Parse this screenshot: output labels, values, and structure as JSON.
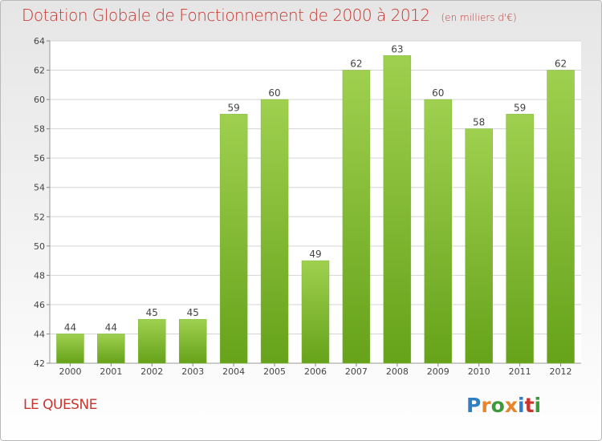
{
  "title": "Dotation Globale de Fonctionnement de 2000 à 2012",
  "subtitle": "(en milliers d'€)",
  "commune": "LE QUESNE",
  "logo": {
    "text": "Proxiti",
    "colors": [
      "#2e7fc3",
      "#e8852a",
      "#3d9a3a",
      "#e8852a",
      "#2e7fc3",
      "#c8352e",
      "#3d9a3a"
    ]
  },
  "colors": {
    "bar_top": "#9fd04f",
    "bar_bottom": "#66a21a",
    "title": "#c8352e",
    "grid": "#d4d4d4"
  },
  "chart_data": {
    "type": "bar",
    "categories": [
      "2000",
      "2001",
      "2002",
      "2003",
      "2004",
      "2005",
      "2006",
      "2007",
      "2008",
      "2009",
      "2010",
      "2011",
      "2012"
    ],
    "values": [
      44,
      44,
      45,
      45,
      59,
      60,
      49,
      62,
      63,
      60,
      58,
      59,
      62
    ],
    "ylim": [
      42,
      64
    ],
    "yticks": [
      42,
      44,
      46,
      48,
      50,
      52,
      54,
      56,
      58,
      60,
      62,
      64
    ],
    "grid": true,
    "xlabel": "",
    "ylabel": ""
  }
}
